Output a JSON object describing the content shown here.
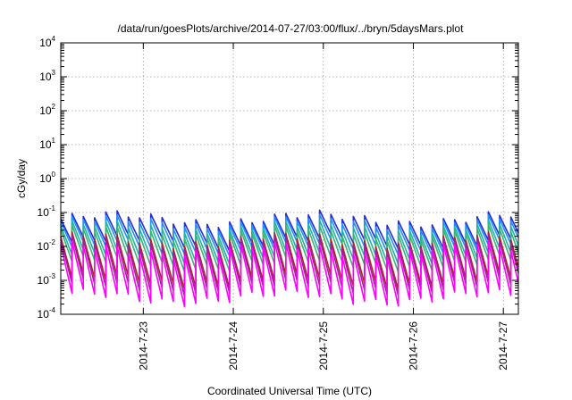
{
  "chart_data": {
    "type": "line",
    "title": "/data/run/goesPlots/archive/2014-07-27/03:00/flux/../bryn/5daysMars.plot",
    "xlabel": "Coordinated Universal Time (UTC)",
    "ylabel": "cGy/day",
    "yscale": "log",
    "ylim": [
      0.0001,
      10000
    ],
    "xlim": [
      "2014-07-22T02:00",
      "2014-07-27T04:00"
    ],
    "grid": true,
    "y_ticks": [
      {
        "base": "10",
        "exp": "-4"
      },
      {
        "base": "10",
        "exp": "-3"
      },
      {
        "base": "10",
        "exp": "-2"
      },
      {
        "base": "10",
        "exp": "-1"
      },
      {
        "base": "10",
        "exp": "0"
      },
      {
        "base": "10",
        "exp": "1"
      },
      {
        "base": "10",
        "exp": "2"
      },
      {
        "base": "10",
        "exp": "3"
      },
      {
        "base": "10",
        "exp": "4"
      }
    ],
    "x_ticks": [
      "2014-7-23",
      "2014-7-24",
      "2014-7-25",
      "2014-7-26",
      "2014-7-27"
    ],
    "sawtooth_period_hours": 3,
    "series": [
      {
        "color": "#2b2bd6",
        "peak": 0.065,
        "trough": 0.013
      },
      {
        "color": "#1e90ff",
        "peak": 0.05,
        "trough": 0.009
      },
      {
        "color": "#20b2aa",
        "peak": 0.035,
        "trough": 0.005
      },
      {
        "color": "#3cb371",
        "peak": 0.025,
        "trough": 0.003
      },
      {
        "color": "#b22222",
        "peak": 0.015,
        "trough": 0.0009
      },
      {
        "color": "#a020a0",
        "peak": 0.012,
        "trough": 0.0006
      },
      {
        "color": "#ff00ff",
        "peak": 0.008,
        "trough": 0.0003
      }
    ]
  }
}
